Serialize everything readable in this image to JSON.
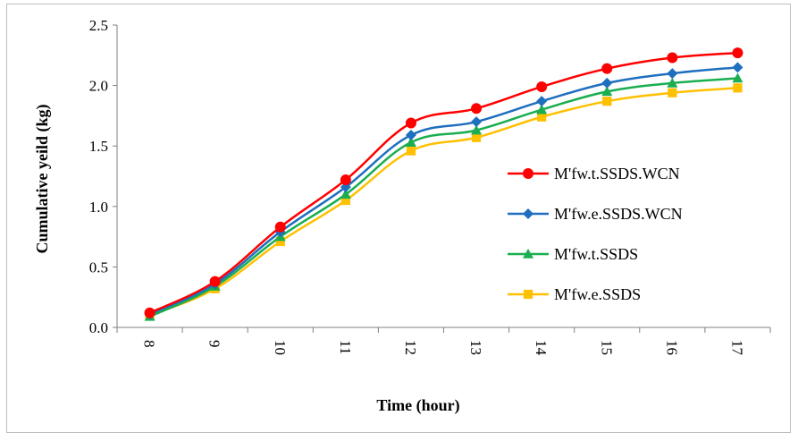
{
  "chart_data": {
    "type": "line",
    "xlabel": "Time (hour)",
    "ylabel": "Cumulative yeild (kg)",
    "categories": [
      "8",
      "9",
      "10",
      "11",
      "12",
      "13",
      "14",
      "15",
      "16",
      "17"
    ],
    "ylim": [
      0,
      2.5
    ],
    "yticks": [
      "0.0",
      "0.5",
      "1.0",
      "1.5",
      "2.0",
      "2.5"
    ],
    "legend_position": "right",
    "grid": false,
    "series": [
      {
        "name": "M'fw.t.SSDS.WCN",
        "color": "#ff0000",
        "marker": "circle",
        "values": [
          0.12,
          0.38,
          0.83,
          1.22,
          1.69,
          1.81,
          1.99,
          2.14,
          2.23,
          2.27
        ]
      },
      {
        "name": "M'fw.e.SSDS.WCN",
        "color": "#1f6fbf",
        "marker": "diamond",
        "values": [
          0.11,
          0.36,
          0.79,
          1.16,
          1.59,
          1.7,
          1.87,
          2.02,
          2.1,
          2.15
        ]
      },
      {
        "name": "M'fw.t.SSDS",
        "color": "#1aae50",
        "marker": "triangle",
        "values": [
          0.09,
          0.34,
          0.75,
          1.1,
          1.53,
          1.63,
          1.8,
          1.95,
          2.02,
          2.06
        ]
      },
      {
        "name": "M'fw.e.SSDS",
        "color": "#ffc000",
        "marker": "square",
        "values": [
          0.1,
          0.32,
          0.71,
          1.05,
          1.46,
          1.57,
          1.74,
          1.87,
          1.94,
          1.98
        ]
      }
    ]
  }
}
